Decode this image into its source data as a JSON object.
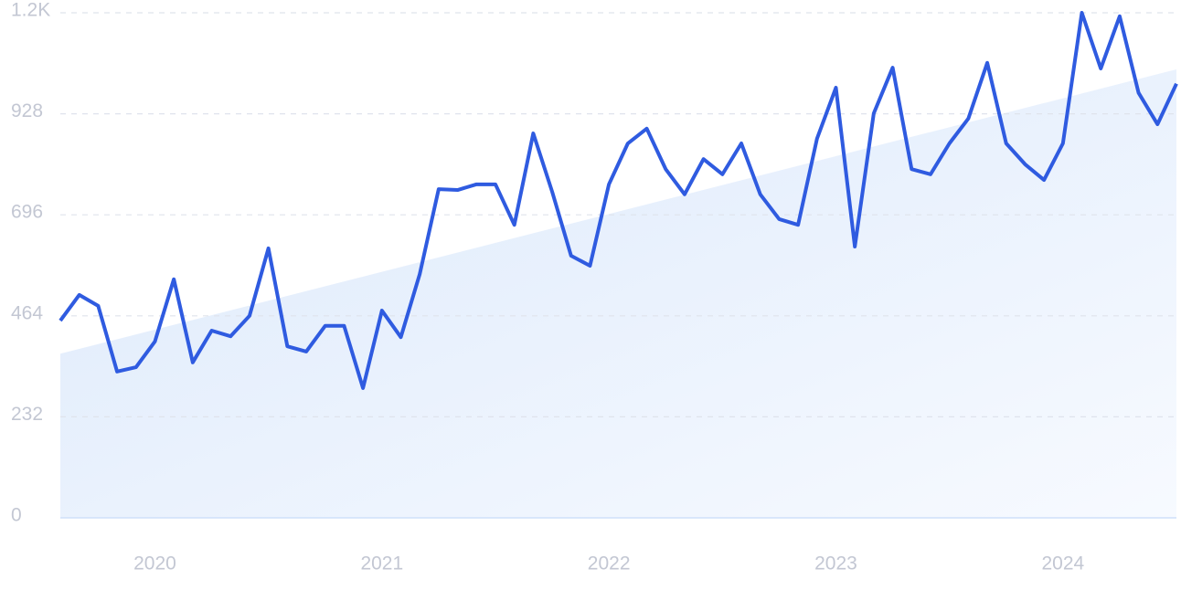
{
  "chart_data": {
    "type": "line",
    "categories": [
      null,
      null,
      null,
      null,
      null,
      "2020",
      null,
      null,
      null,
      null,
      null,
      null,
      null,
      null,
      null,
      null,
      null,
      "2021",
      null,
      null,
      null,
      null,
      null,
      null,
      null,
      null,
      null,
      null,
      null,
      "2022",
      null,
      null,
      null,
      null,
      null,
      null,
      null,
      null,
      null,
      null,
      null,
      "2023",
      null,
      null,
      null,
      null,
      null,
      null,
      null,
      null,
      null,
      null,
      null,
      "2024",
      null,
      null,
      null,
      null,
      null,
      null
    ],
    "series": [
      {
        "color": "#2f5be0",
        "values": [
          453,
          512,
          487,
          336,
          346,
          405,
          548,
          357,
          430,
          417,
          464,
          619,
          394,
          382,
          441,
          441,
          298,
          476,
          415,
          560,
          755,
          753,
          766,
          766,
          673,
          883,
          749,
          602,
          579,
          766,
          860,
          894,
          801,
          743,
          824,
          789,
          860,
          743,
          686,
          673,
          871,
          988,
          623,
          929,
          1034,
          801,
          789,
          860,
          917,
          1045,
          860,
          812,
          776,
          860,
          1160,
          1032,
          1152,
          976,
          904,
          997
        ]
      }
    ],
    "trend_line": [
      377,
      1030
    ],
    "trend_color": "#dce9fb",
    "ylim": [
      0,
      1160
    ],
    "yticks": [
      0,
      232,
      464,
      696,
      928,
      {
        "value": 1160,
        "label": "1.2K"
      }
    ],
    "grid": true
  }
}
